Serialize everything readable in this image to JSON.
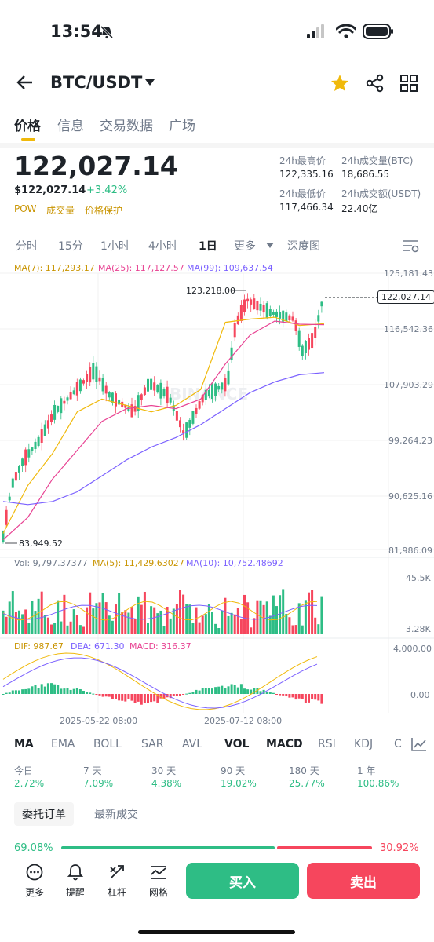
{
  "status_bar": {
    "time": "13:54"
  },
  "header": {
    "pair": "BTC/USDT"
  },
  "tabs": [
    {
      "label": "价格"
    },
    {
      "label": "信息"
    },
    {
      "label": "交易数据"
    },
    {
      "label": "广场"
    }
  ],
  "price": {
    "last": "122,027.14",
    "usd": "$122,027.14",
    "change": "+3.42%",
    "tags": [
      "POW",
      "成交量",
      "价格保护"
    ]
  },
  "stats": {
    "high_label": "24h最高价",
    "high": "122,335.16",
    "vol_btc_label": "24h成交量(BTC)",
    "vol_btc": "18,686.55",
    "low_label": "24h最低价",
    "low": "117,466.34",
    "vol_usdt_label": "24h成交额(USDT)",
    "vol_usdt": "22.40亿"
  },
  "intervals": [
    "分时",
    "15分",
    "1小时",
    "4小时",
    "1日",
    "更多",
    "深度图"
  ],
  "chart": {
    "ma_legend": {
      "ma7": "MA(7): 117,293.17",
      "ma25": "MA(25): 117,127.57",
      "ma99": "MA(99): 109,637.54"
    },
    "price_axis": [
      "125,181.43",
      "116,542.36",
      "107,903.29",
      "99,264.23",
      "90,625.16",
      "81,986.09"
    ],
    "current_price_tag": "122,027.14",
    "high_marker": "123,218.00",
    "low_marker": "83,949.52",
    "watermark": "BINANCE",
    "vol_legend": {
      "vol": "Vol: 9,797.37377",
      "ma5": "MA(5): 11,429.63027",
      "ma10": "MA(10): 10,752.48692"
    },
    "vol_axis": [
      "45.5K",
      "3.28K"
    ],
    "macd_legend": {
      "dif": "DIF: 987.67",
      "dea": "DEA: 671.30",
      "macd": "MACD: 316.37"
    },
    "macd_axis": [
      "4,000.00",
      "0.00"
    ],
    "dates": [
      "2025-05-22 08:00",
      "2025-07-12 08:00"
    ],
    "colors": {
      "up": "#2ebd85",
      "down": "#f6465d",
      "ma7": "#f0b90b",
      "ma25": "#e84393",
      "ma99": "#7b61ff"
    }
  },
  "chart_data": {
    "type": "line",
    "title": "",
    "xlabel": "",
    "ylabel": "",
    "ylim": [
      81986.09,
      125181.43
    ],
    "series": [
      {
        "name": "MA(7)",
        "values": [
          84500,
          92000,
          97000,
          103500,
          105500,
          104500,
          103500,
          104500,
          107000,
          117500,
          118000,
          118300,
          117000,
          117293
        ]
      },
      {
        "name": "MA(25)",
        "values": [
          83500,
          87000,
          93000,
          97500,
          102000,
          104000,
          104500,
          104000,
          105500,
          111000,
          115500,
          117700,
          117200,
          117128
        ]
      },
      {
        "name": "MA(99)",
        "values": [
          89500,
          89000,
          89500,
          91000,
          93500,
          96000,
          98000,
          99500,
          101500,
          104000,
          106500,
          108200,
          109300,
          109638
        ]
      }
    ]
  },
  "indicators": [
    "MA",
    "EMA",
    "BOLL",
    "SAR",
    "AVL",
    "VOL",
    "MACD",
    "RSI",
    "KDJ",
    "C"
  ],
  "performance": [
    {
      "label": "今日",
      "value": "2.72%"
    },
    {
      "label": "7 天",
      "value": "7.09%"
    },
    {
      "label": "30 天",
      "value": "4.38%"
    },
    {
      "label": "90 天",
      "value": "19.02%"
    },
    {
      "label": "180 天",
      "value": "25.77%"
    },
    {
      "label": "1 年",
      "value": "100.86%"
    }
  ],
  "orderbook": {
    "tab1": "委托订单",
    "tab2": "最新成交",
    "buy_ratio": "69.08%",
    "sell_ratio": "30.92%",
    "buy_fraction": 0.6908
  },
  "bottom": {
    "more": "更多",
    "alert": "提醒",
    "margin": "杠杆",
    "grid": "网格",
    "buy": "买入",
    "sell": "卖出"
  }
}
